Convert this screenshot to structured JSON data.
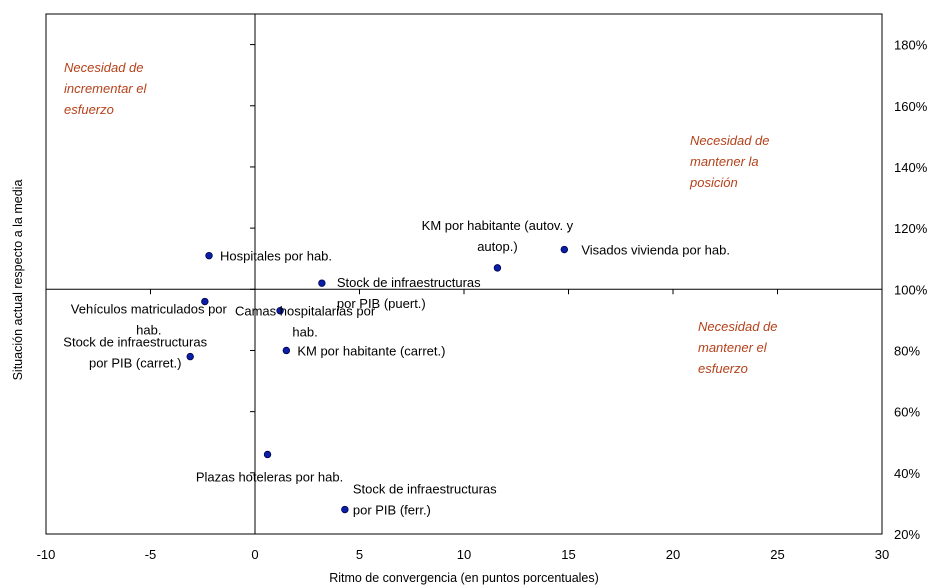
{
  "chart_data": {
    "type": "scatter",
    "xlabel": "Ritmo de convergencia (en puntos porcentuales)",
    "ylabel": "Situación actual respecto a la media",
    "xlim": [
      -10,
      30
    ],
    "ylim": [
      20,
      190
    ],
    "x_ticks": [
      -10,
      -5,
      0,
      5,
      10,
      15,
      20,
      25,
      30
    ],
    "y_ticks": [
      20,
      40,
      60,
      80,
      100,
      120,
      140,
      160,
      180
    ],
    "y_tick_suffix": "%",
    "y_axis_position": "right",
    "grid": false,
    "crosshair": {
      "x": 0,
      "y": 100
    },
    "marker_color": "#0a1fa8",
    "annotation_color": "#b5411a",
    "points": [
      {
        "x": -2.2,
        "y": 111,
        "lines": [
          "Hospitales por hab."
        ]
      },
      {
        "x": 3.2,
        "y": 102,
        "lines": [
          "Stock de infraestructuras",
          "por PIB (puert.)"
        ]
      },
      {
        "x": 11.6,
        "y": 107,
        "lines": [
          "KM por habitante (autov. y",
          "autop.)"
        ]
      },
      {
        "x": 14.8,
        "y": 113,
        "lines": [
          "Visados vivienda por hab."
        ]
      },
      {
        "x": -2.4,
        "y": 96,
        "lines": [
          "Vehículos matriculados por",
          "hab."
        ]
      },
      {
        "x": 1.2,
        "y": 93,
        "lines": [
          "Camas hospitalarias por",
          "hab."
        ]
      },
      {
        "x": -3.1,
        "y": 78,
        "lines": [
          "Stock de infraestructuras",
          "por PIB (carret.)"
        ]
      },
      {
        "x": 1.5,
        "y": 80,
        "lines": [
          "KM por habitante (carret.)"
        ]
      },
      {
        "x": 0.6,
        "y": 46,
        "lines": [
          "Plazas hoteleras por hab."
        ]
      },
      {
        "x": 4.3,
        "y": 28,
        "lines": [
          "Stock de infraestructuras",
          "por PIB (ferr.)"
        ]
      }
    ],
    "annotations": [
      {
        "lines": [
          "Necesidad de",
          "incrementar el",
          "esfuerzo"
        ]
      },
      {
        "lines": [
          "Necesidad de",
          "mantener la",
          "posición"
        ]
      },
      {
        "lines": [
          "Necesidad de",
          "mantener el",
          "esfuerzo"
        ]
      }
    ]
  }
}
